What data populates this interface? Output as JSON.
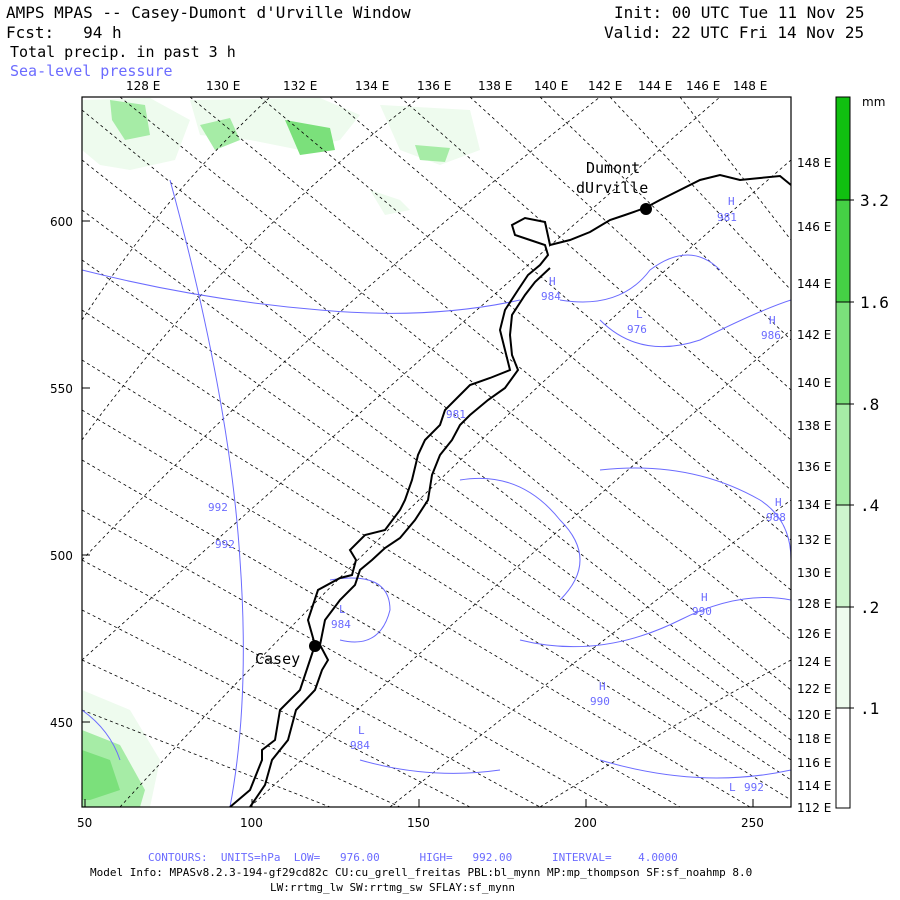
{
  "header": {
    "title": "AMPS MPAS -- Casey-Dumont d'Urville Window",
    "forecast": "Fcst:   94 h",
    "field1": "Total precip. in past 3 h",
    "field2": "Sea-level pressure",
    "init": "Init: 00 UTC Tue 11 Nov 25",
    "valid": "Valid: 22 UTC Fri 14 Nov 25"
  },
  "axes": {
    "top_lon": [
      "128 E",
      "130 E",
      "132 E",
      "134 E",
      "136 E",
      "138 E",
      "140 E",
      "142 E",
      "144 E",
      "146 E",
      "148 E"
    ],
    "right_lon": [
      "148 E",
      "146 E",
      "144 E",
      "142 E",
      "140 E",
      "138 E",
      "136 E",
      "134 E",
      "132 E",
      "130 E",
      "128 E",
      "126 E",
      "124 E",
      "122 E",
      "120 E",
      "118 E",
      "116 E",
      "114 E",
      "112 E"
    ],
    "left_y": [
      "600",
      "550",
      "500",
      "450"
    ],
    "bottom_x": [
      "50",
      "100",
      "150",
      "200",
      "250"
    ]
  },
  "colorbar": {
    "unit": "mm",
    "labels": [
      "3.2",
      "1.6",
      ".8",
      ".4",
      ".2",
      ".1"
    ],
    "colors": [
      "#ffffff",
      "#eefbee",
      "#cdf5cd",
      "#a6eca6",
      "#7be07b",
      "#45d145",
      "#10c010"
    ]
  },
  "places": {
    "dumont_line1": "Dumont",
    "dumont_line2": "dUrville",
    "casey": "Casey"
  },
  "contour_labels": [
    {
      "letter": "H",
      "value": "981"
    },
    {
      "letter": "H",
      "value": "984"
    },
    {
      "letter": "L",
      "value": "976"
    },
    {
      "letter": "H",
      "value": "986"
    },
    {
      "letter": "",
      "value": "981"
    },
    {
      "letter": "H",
      "value": "988"
    },
    {
      "letter": "",
      "value": "992"
    },
    {
      "letter": "",
      "value": "992"
    },
    {
      "letter": "L",
      "value": "984"
    },
    {
      "letter": "H",
      "value": "990"
    },
    {
      "letter": "H",
      "value": "990"
    },
    {
      "letter": "L",
      "value": "984"
    },
    {
      "letter": "L",
      "value": "992"
    }
  ],
  "footer": {
    "contours": "CONTOURS:  UNITS=hPa  LOW=   976.00      HIGH=   992.00      INTERVAL=    4.0000",
    "model1": "Model Info: MPASv8.2.3-194-gf29cd82c CU:cu_grell_freitas PBL:bl_mynn MP:mp_thompson SF:sf_noahmp 8.0",
    "model2": "LW:rrtmg_lw SW:rrtmg_sw SFLAY:sf_mynn"
  }
}
